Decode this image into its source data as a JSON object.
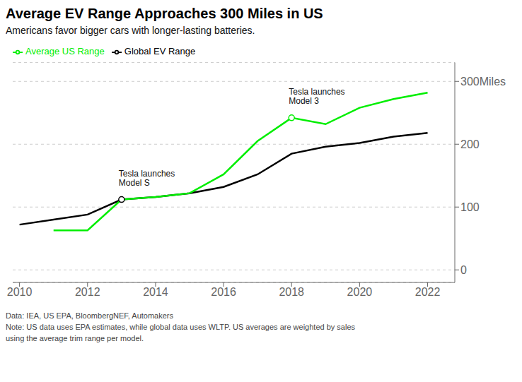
{
  "chart_data": {
    "type": "line",
    "title": "Average EV Range Approaches 300 Miles in US",
    "subtitle": "Americans favor bigger cars with longer-lasting batteries.",
    "footnote": [
      "Data: IEA, US EPA, BloombergNEF, Automakers",
      "Note: US data uses EPA estimates, while global data uses WLTP. US averages are weighted by sales",
      "using the average trim range per model."
    ],
    "x": [
      2010,
      2011,
      2012,
      2013,
      2014,
      2015,
      2016,
      2017,
      2018,
      2019,
      2020,
      2021,
      2022
    ],
    "series": [
      {
        "name": "Global EV Range",
        "color": "#000000",
        "values": [
          72,
          80,
          88,
          112,
          116,
          122,
          132,
          152,
          185,
          196,
          202,
          212,
          218
        ]
      },
      {
        "name": "Average US Range",
        "color": "#00ee00",
        "values": [
          null,
          63,
          63,
          112,
          116,
          122,
          152,
          205,
          242,
          232,
          258,
          272,
          282
        ]
      }
    ],
    "annotations": [
      {
        "x": 2013,
        "y": 112,
        "text": "Tesla launches\nModel S",
        "color": "#000000"
      },
      {
        "x": 2018,
        "y": 242,
        "text": "Tesla launches\nModel 3",
        "color": "#00ee00"
      }
    ],
    "xlim": [
      2009.8,
      2022.8
    ],
    "xticks": [
      2010,
      2012,
      2014,
      2016,
      2018,
      2020,
      2022
    ],
    "ylim": [
      -20,
      330
    ],
    "yticks": [
      0,
      100,
      200,
      {
        "value": 300,
        "label": "300Miles"
      }
    ],
    "grid": true,
    "legend": "top left"
  }
}
